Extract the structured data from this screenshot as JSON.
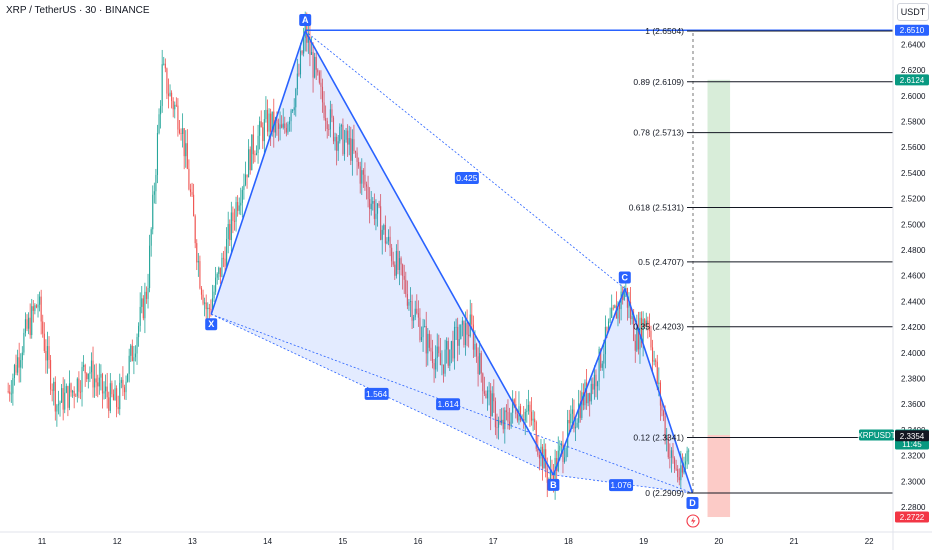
{
  "header": {
    "symbol_line": "XRP / TetherUS · 30 · BINANCE"
  },
  "axis_unit": "USDT",
  "colors": {
    "up": "#26a69a",
    "down": "#ef5350",
    "pattern": "#2962ff",
    "fill": "#2962ff",
    "target_zone": "#4caf50",
    "stop_zone": "#f44336"
  },
  "chart_data": {
    "type": "candlestick",
    "x_ticks": [
      "11",
      "12",
      "13",
      "14",
      "15",
      "16",
      "17",
      "18",
      "19",
      "20",
      "21",
      "22"
    ],
    "y_ticks": [
      2.64,
      2.62,
      2.6,
      2.58,
      2.56,
      2.54,
      2.52,
      2.5,
      2.48,
      2.46,
      2.44,
      2.42,
      2.4,
      2.38,
      2.36,
      2.34,
      2.32,
      2.3,
      2.28
    ],
    "ylim": [
      2.26,
      2.66
    ],
    "price_path": [
      [
        10.55,
        2.37
      ],
      [
        10.75,
        2.41
      ],
      [
        10.95,
        2.44
      ],
      [
        11.05,
        2.4
      ],
      [
        11.2,
        2.36
      ],
      [
        11.4,
        2.37
      ],
      [
        11.6,
        2.39
      ],
      [
        11.8,
        2.37
      ],
      [
        12.0,
        2.36
      ],
      [
        12.2,
        2.4
      ],
      [
        12.4,
        2.45
      ],
      [
        12.6,
        2.62
      ],
      [
        12.7,
        2.6
      ],
      [
        12.85,
        2.58
      ],
      [
        13.0,
        2.51
      ],
      [
        13.1,
        2.46
      ],
      [
        13.2,
        2.43
      ],
      [
        13.4,
        2.47
      ],
      [
        13.6,
        2.52
      ],
      [
        13.8,
        2.56
      ],
      [
        14.0,
        2.58
      ],
      [
        14.2,
        2.57
      ],
      [
        14.4,
        2.61
      ],
      [
        14.5,
        2.65
      ],
      [
        14.7,
        2.6
      ],
      [
        14.9,
        2.57
      ],
      [
        15.1,
        2.56
      ],
      [
        15.3,
        2.53
      ],
      [
        15.5,
        2.5
      ],
      [
        15.7,
        2.47
      ],
      [
        15.9,
        2.44
      ],
      [
        16.1,
        2.41
      ],
      [
        16.3,
        2.39
      ],
      [
        16.5,
        2.41
      ],
      [
        16.7,
        2.42
      ],
      [
        16.9,
        2.37
      ],
      [
        17.1,
        2.34
      ],
      [
        17.3,
        2.36
      ],
      [
        17.5,
        2.35
      ],
      [
        17.75,
        2.3
      ],
      [
        17.95,
        2.33
      ],
      [
        18.15,
        2.36
      ],
      [
        18.35,
        2.38
      ],
      [
        18.55,
        2.42
      ],
      [
        18.75,
        2.45
      ],
      [
        18.9,
        2.41
      ],
      [
        19.05,
        2.43
      ],
      [
        19.2,
        2.37
      ],
      [
        19.35,
        2.32
      ],
      [
        19.5,
        2.3
      ],
      [
        19.62,
        2.335
      ]
    ],
    "harmonic_pattern": {
      "points": [
        {
          "label": "X",
          "x": 13.25,
          "y": 2.43
        },
        {
          "label": "A",
          "x": 14.5,
          "y": 2.6504
        },
        {
          "label": "B",
          "x": 17.8,
          "y": 2.305
        },
        {
          "label": "C",
          "x": 18.75,
          "y": 2.45
        },
        {
          "label": "D",
          "x": 19.65,
          "y": 2.2909
        }
      ],
      "ratios": [
        {
          "value": "0.425",
          "x": 16.65,
          "y": 2.536
        },
        {
          "value": "1.564",
          "x": 15.45,
          "y": 2.368
        },
        {
          "value": "1.614",
          "x": 16.4,
          "y": 2.36
        },
        {
          "value": "1.076",
          "x": 18.7,
          "y": 2.297
        }
      ]
    },
    "fib_levels": [
      {
        "label": "1 (2.6504)",
        "value": 2.6504
      },
      {
        "label": "0.89 (2.6109)",
        "value": 2.6109
      },
      {
        "label": "0.78 (2.5713)",
        "value": 2.5713
      },
      {
        "label": "0.618 (2.5131)",
        "value": 2.5131
      },
      {
        "label": "0.5 (2.4707)",
        "value": 2.4707
      },
      {
        "label": "0.35 (2.4203)",
        "value": 2.4203
      },
      {
        "label": "0.12 (2.3341)",
        "value": 2.3341
      },
      {
        "label": "0 (2.2909)",
        "value": 2.2909
      }
    ],
    "position": {
      "x_start": 19.85,
      "x_end": 20.15,
      "entry": 2.336,
      "target": 2.6124,
      "stop": 2.2722
    },
    "price_tags": [
      {
        "text": "2.6510",
        "value": 2.651,
        "color": "#2962ff"
      },
      {
        "text": "2.6124",
        "value": 2.6124,
        "color": "#089981"
      },
      {
        "text": "2.3360",
        "value": 2.336,
        "color": "#089981",
        "sub": "11:45",
        "name": "XRPUSDT"
      },
      {
        "text": "2.3354",
        "value": 2.3354,
        "color": "#131722"
      },
      {
        "text": "2.2722",
        "value": 2.2722,
        "color": "#f23645"
      }
    ]
  }
}
